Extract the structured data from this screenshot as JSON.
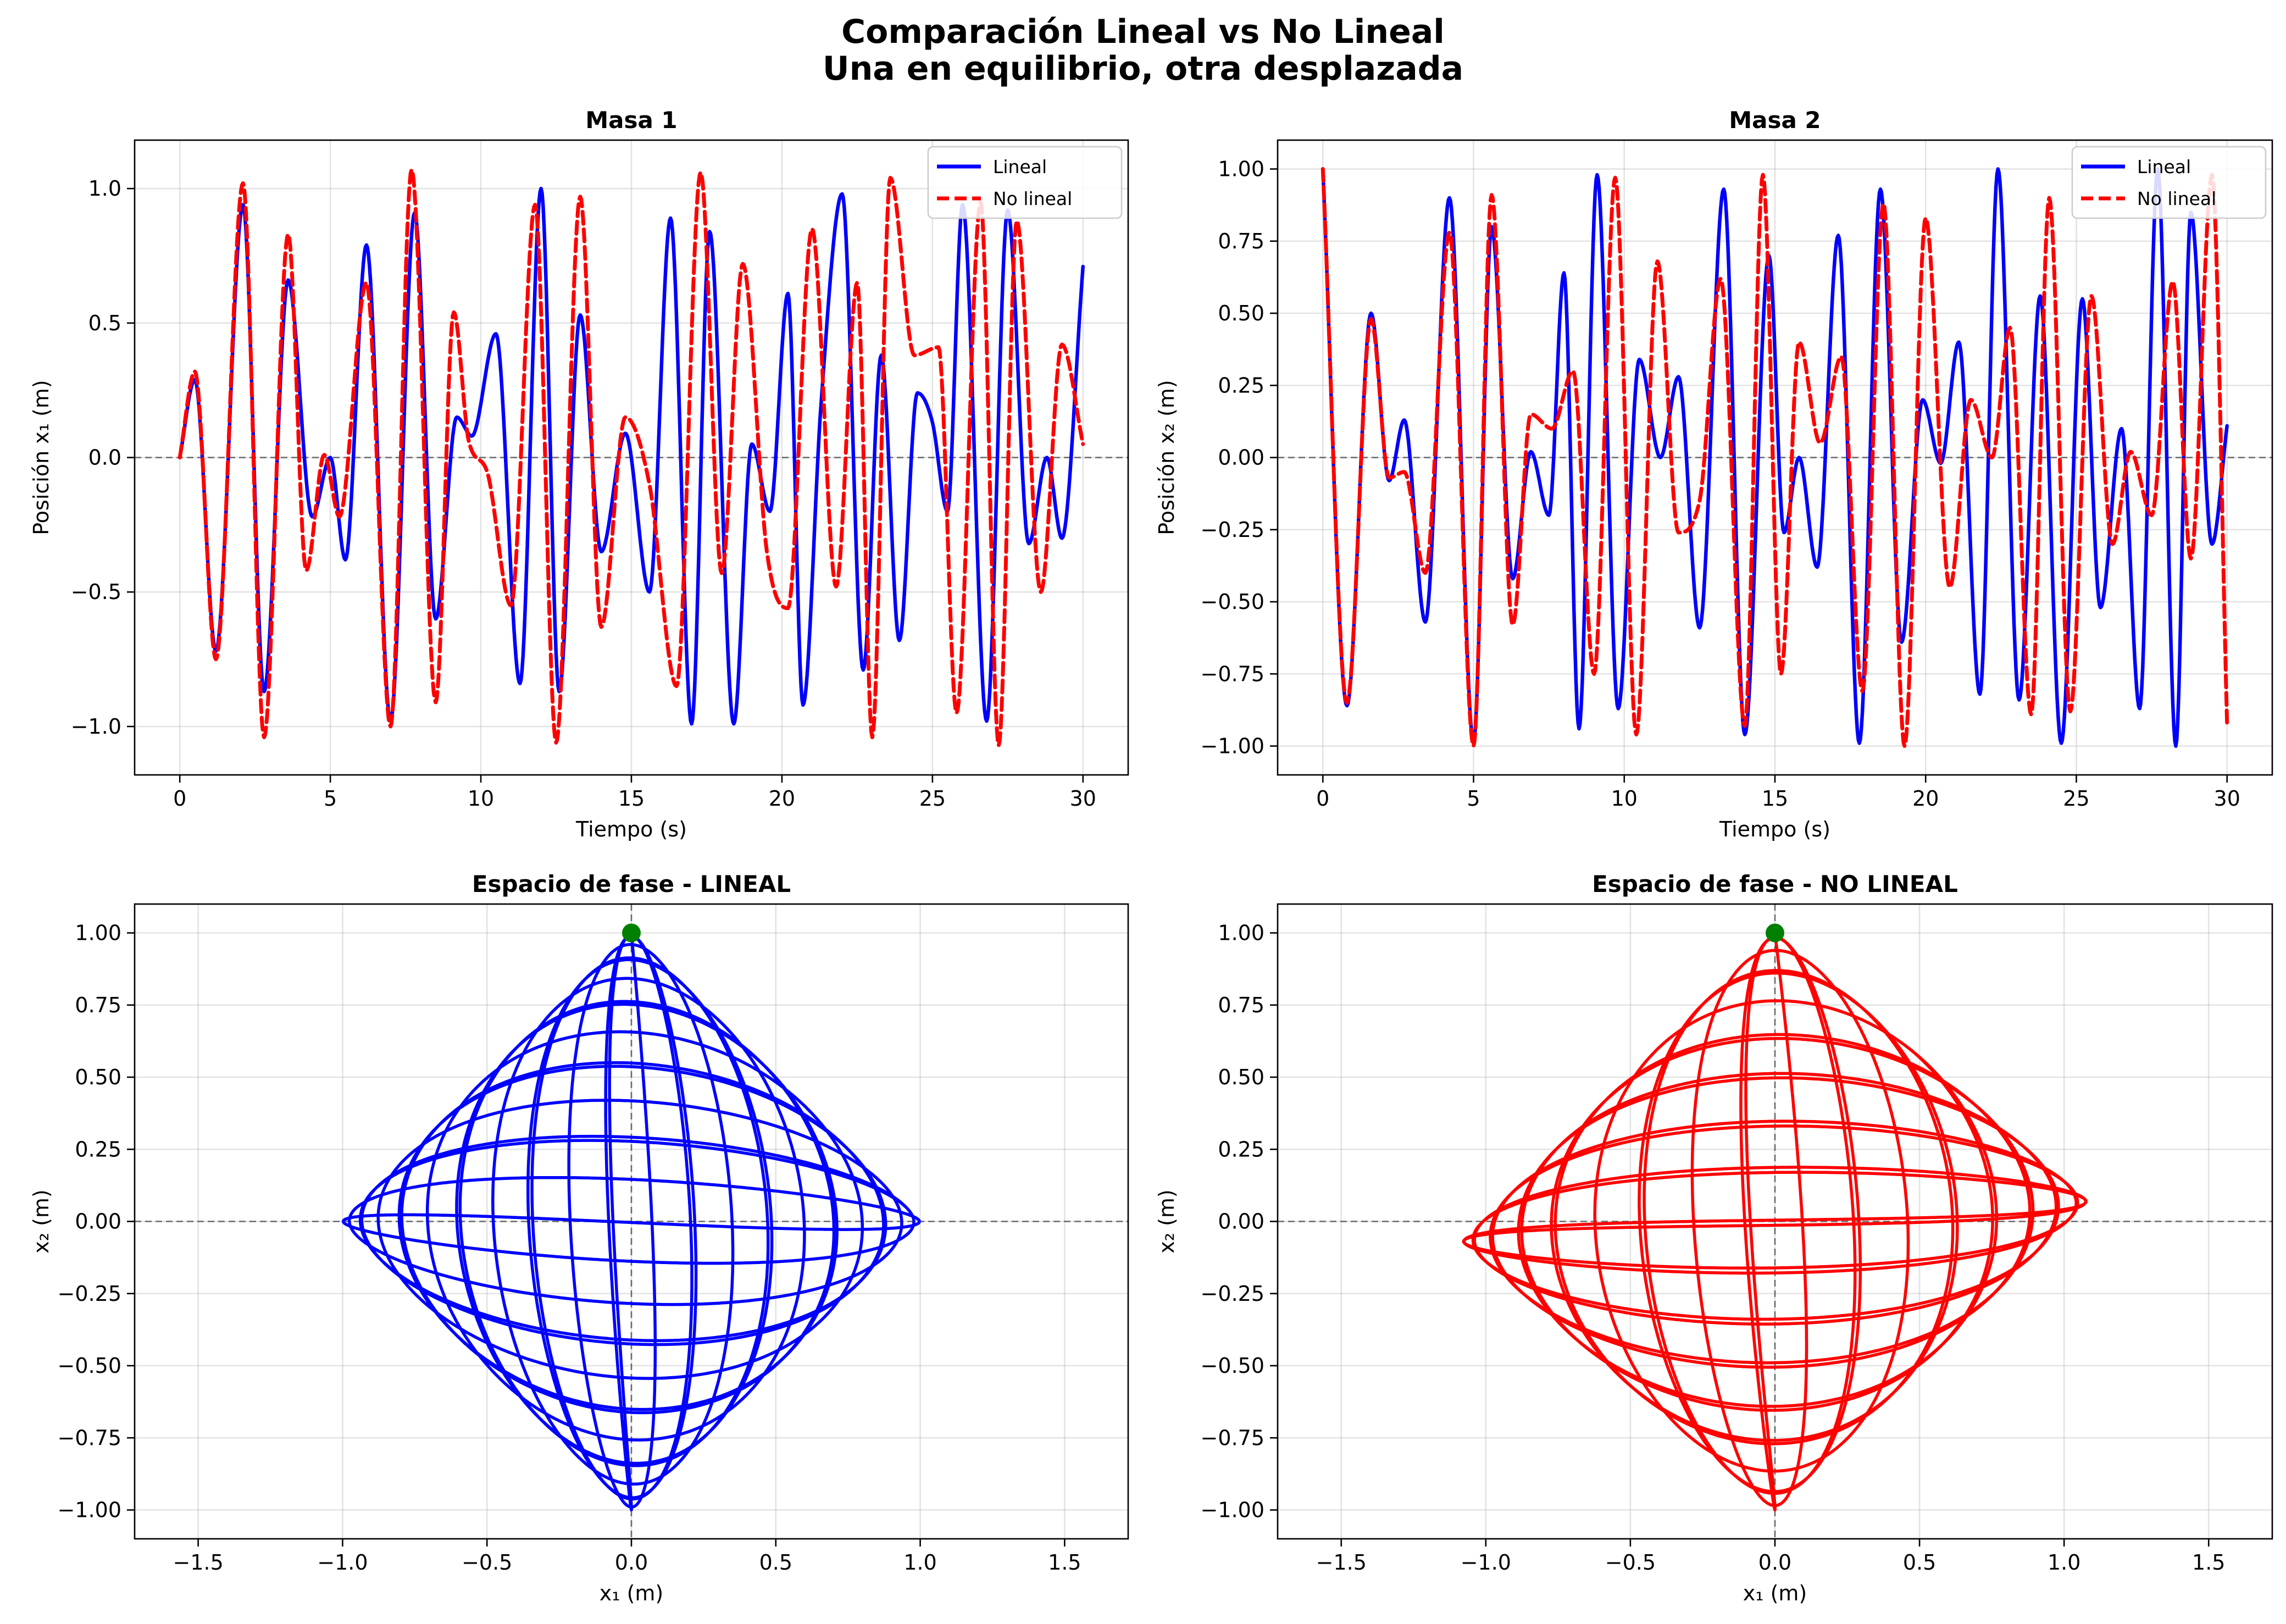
{
  "figure": {
    "title_line1": "Comparación Lineal vs No Lineal",
    "title_line2": "Una en equilibrio, otra desplazada"
  },
  "colors": {
    "lineal": "#0000ff",
    "no_lineal": "#ff0000",
    "start_marker": "#008000",
    "zero_line": "#555555"
  },
  "chart_data": [
    {
      "type": "line",
      "title": "Masa 1",
      "xlabel": "Tiempo (s)",
      "ylabel": "Posición x₁ (m)",
      "xlim": [
        -1.5,
        31.5
      ],
      "ylim": [
        -1.18,
        1.18
      ],
      "xticks": [
        0,
        5,
        10,
        15,
        20,
        25,
        30
      ],
      "xtick_labels": [
        "0",
        "5",
        "10",
        "15",
        "20",
        "25",
        "30"
      ],
      "yticks": [
        -1.0,
        -0.5,
        0.0,
        0.5,
        1.0
      ],
      "ytick_labels": [
        "−1.0",
        "−0.5",
        "0.0",
        "0.5",
        "1.0"
      ],
      "grid": true,
      "legend": "upper right",
      "zero_line": "horizontal dashed at y = 0",
      "series": [
        {
          "name": "Lineal",
          "style": "solid",
          "color": "#0000ff",
          "x": [
            0,
            0.5,
            1.2,
            2.1,
            2.8,
            3.6,
            4.4,
            5.0,
            5.5,
            6.2,
            7.0,
            7.8,
            8.5,
            9.2,
            9.7,
            10.5,
            11.3,
            12.0,
            12.6,
            13.3,
            14.0,
            14.8,
            15.6,
            16.3,
            17.0,
            17.6,
            18.4,
            19.0,
            19.6,
            20.2,
            20.7,
            21.3,
            22.0,
            22.7,
            23.3,
            23.9,
            24.5,
            25.0,
            25.5,
            26.0,
            26.8,
            27.5,
            28.2,
            28.8,
            29.3,
            30.0
          ],
          "y": [
            0,
            0.29,
            -0.72,
            0.94,
            -0.87,
            0.66,
            -0.22,
            0.0,
            -0.38,
            0.79,
            -0.98,
            0.91,
            -0.6,
            0.15,
            0.08,
            0.46,
            -0.84,
            1.0,
            -0.87,
            0.53,
            -0.35,
            0.09,
            -0.5,
            0.89,
            -0.99,
            0.84,
            -0.99,
            0.05,
            -0.2,
            0.61,
            -0.92,
            0.2,
            0.98,
            -0.79,
            0.38,
            -0.68,
            0.24,
            0.13,
            -0.2,
            0.94,
            -0.98,
            0.92,
            -0.32,
            0.0,
            -0.3,
            0.71
          ]
        },
        {
          "name": "No lineal",
          "style": "dashed",
          "color": "#ff0000",
          "x": [
            0,
            0.5,
            1.2,
            2.1,
            2.8,
            3.6,
            4.2,
            4.8,
            5.3,
            6.2,
            7.0,
            7.7,
            8.5,
            9.1,
            9.6,
            10.2,
            11.0,
            11.8,
            12.5,
            13.3,
            14.0,
            14.8,
            15.6,
            16.5,
            17.3,
            18.0,
            18.7,
            19.5,
            20.2,
            21.0,
            21.8,
            22.5,
            23.0,
            23.6,
            24.4,
            25.2,
            25.8,
            26.6,
            27.2,
            27.8,
            28.6,
            29.3,
            30.0
          ],
          "y": [
            0,
            0.32,
            -0.75,
            1.02,
            -1.04,
            0.83,
            -0.42,
            0.01,
            -0.22,
            0.65,
            -1.0,
            1.07,
            -0.91,
            0.54,
            0.06,
            -0.05,
            -0.55,
            0.94,
            -1.06,
            0.97,
            -0.63,
            0.15,
            -0.1,
            -0.85,
            1.06,
            -0.43,
            0.72,
            -0.35,
            -0.56,
            0.85,
            -0.48,
            0.65,
            -1.04,
            1.04,
            0.38,
            0.41,
            -0.95,
            0.95,
            -1.07,
            0.88,
            -0.5,
            0.42,
            0.05
          ]
        }
      ]
    },
    {
      "type": "line",
      "title": "Masa 2",
      "xlabel": "Tiempo (s)",
      "ylabel": "Posición x₂ (m)",
      "xlim": [
        -1.5,
        31.5
      ],
      "ylim": [
        -1.1,
        1.1
      ],
      "xticks": [
        0,
        5,
        10,
        15,
        20,
        25,
        30
      ],
      "xtick_labels": [
        "0",
        "5",
        "10",
        "15",
        "20",
        "25",
        "30"
      ],
      "yticks": [
        -1.0,
        -0.75,
        -0.5,
        -0.25,
        0.0,
        0.25,
        0.5,
        0.75,
        1.0
      ],
      "ytick_labels": [
        "−1.00",
        "−0.75",
        "−0.50",
        "−0.25",
        "0.00",
        "0.25",
        "0.50",
        "0.75",
        "1.00"
      ],
      "grid": true,
      "legend": "upper right",
      "zero_line": "horizontal dashed at y = 0",
      "series": [
        {
          "name": "Lineal",
          "style": "solid",
          "color": "#0000ff",
          "x": [
            0,
            0.8,
            1.6,
            2.2,
            2.7,
            3.4,
            4.2,
            5.0,
            5.6,
            6.3,
            6.9,
            7.5,
            8.0,
            8.5,
            9.1,
            9.8,
            10.5,
            11.2,
            11.8,
            12.5,
            13.3,
            14.0,
            14.8,
            15.3,
            15.8,
            16.4,
            17.1,
            17.8,
            18.5,
            19.2,
            19.9,
            20.5,
            21.1,
            21.8,
            22.4,
            23.1,
            23.8,
            24.5,
            25.2,
            25.8,
            26.5,
            27.1,
            27.7,
            28.3,
            28.8,
            29.5,
            30.0
          ],
          "y": [
            1.0,
            -0.86,
            0.5,
            -0.08,
            0.13,
            -0.57,
            0.9,
            -0.99,
            0.8,
            -0.42,
            0.02,
            -0.2,
            0.64,
            -0.94,
            0.98,
            -0.87,
            0.34,
            0.0,
            0.28,
            -0.59,
            0.93,
            -0.96,
            0.7,
            -0.26,
            0.0,
            -0.38,
            0.77,
            -0.99,
            0.93,
            -0.64,
            0.2,
            -0.02,
            0.4,
            -0.82,
            1.0,
            -0.84,
            0.56,
            -0.99,
            0.55,
            -0.52,
            0.1,
            -0.87,
            1.0,
            -1.0,
            0.85,
            -0.3,
            0.11
          ]
        },
        {
          "name": "No lineal",
          "style": "dashed",
          "color": "#ff0000",
          "x": [
            0,
            0.8,
            1.6,
            2.2,
            2.7,
            3.4,
            4.2,
            5.0,
            5.6,
            6.3,
            6.9,
            7.6,
            8.3,
            9.0,
            9.7,
            10.4,
            11.1,
            11.8,
            12.5,
            13.2,
            14.0,
            14.6,
            15.2,
            15.8,
            16.5,
            17.2,
            17.9,
            18.6,
            19.3,
            20.0,
            20.8,
            21.5,
            22.2,
            22.8,
            23.5,
            24.1,
            24.8,
            25.5,
            26.2,
            26.8,
            27.5,
            28.2,
            28.8,
            29.5,
            30.0
          ],
          "y": [
            1.0,
            -0.85,
            0.48,
            -0.07,
            -0.05,
            -0.4,
            0.78,
            -1.0,
            0.91,
            -0.58,
            0.15,
            0.1,
            0.3,
            -0.75,
            0.97,
            -0.96,
            0.68,
            -0.26,
            -0.15,
            0.62,
            -0.93,
            0.98,
            -0.75,
            0.4,
            0.05,
            0.35,
            -0.81,
            0.88,
            -1.0,
            0.83,
            -0.45,
            0.2,
            0.0,
            0.45,
            -0.89,
            0.9,
            -0.88,
            0.56,
            -0.3,
            0.02,
            -0.2,
            0.61,
            -0.35,
            0.98,
            -0.92
          ]
        }
      ]
    },
    {
      "type": "scatter",
      "title": "Espacio de fase - LINEAL",
      "xlabel": "x₁ (m)",
      "ylabel": "x₂ (m)",
      "xlim": [
        -1.72,
        1.72
      ],
      "ylim": [
        -1.1,
        1.1
      ],
      "xticks": [
        -1.5,
        -1.0,
        -0.5,
        0.0,
        0.5,
        1.0,
        1.5
      ],
      "xtick_labels": [
        "−1.5",
        "−1.0",
        "−0.5",
        "0.0",
        "0.5",
        "1.0",
        "1.5"
      ],
      "yticks": [
        -1.0,
        -0.75,
        -0.5,
        -0.25,
        0.0,
        0.25,
        0.5,
        0.75,
        1.0
      ],
      "ytick_labels": [
        "−1.00",
        "−0.75",
        "−0.50",
        "−0.25",
        "0.00",
        "0.25",
        "0.50",
        "0.75",
        "1.00"
      ],
      "grid": true,
      "zero_line": "horizontal and vertical dashed at 0",
      "trajectory_color": "#0000ff",
      "trajectory_extent": {
        "x1": [
          -1.0,
          1.0
        ],
        "x2": [
          -1.0,
          1.0
        ]
      },
      "vertices": [
        [
          0.0,
          1.0
        ],
        [
          1.0,
          0.0
        ],
        [
          0.0,
          -1.0
        ],
        [
          -1.0,
          0.0
        ]
      ],
      "start_point": {
        "x": 0.0,
        "y": 1.0,
        "color": "#008000"
      }
    },
    {
      "type": "scatter",
      "title": "Espacio de fase - NO LINEAL",
      "xlabel": "x₁ (m)",
      "ylabel": "x₂ (m)",
      "xlim": [
        -1.72,
        1.72
      ],
      "ylim": [
        -1.1,
        1.1
      ],
      "xticks": [
        -1.5,
        -1.0,
        -0.5,
        0.0,
        0.5,
        1.0,
        1.5
      ],
      "xtick_labels": [
        "−1.5",
        "−1.0",
        "−0.5",
        "0.0",
        "0.5",
        "1.0",
        "1.5"
      ],
      "yticks": [
        -1.0,
        -0.75,
        -0.5,
        -0.25,
        0.0,
        0.25,
        0.5,
        0.75,
        1.0
      ],
      "ytick_labels": [
        "−1.00",
        "−0.75",
        "−0.50",
        "−0.25",
        "0.00",
        "0.25",
        "0.50",
        "0.75",
        "1.00"
      ],
      "grid": true,
      "zero_line": "horizontal and vertical dashed at 0",
      "trajectory_color": "#ff0000",
      "trajectory_extent": {
        "x1": [
          -1.08,
          1.08
        ],
        "x2": [
          -1.0,
          1.0
        ]
      },
      "vertices": [
        [
          0.0,
          1.0
        ],
        [
          1.08,
          0.07
        ],
        [
          0.0,
          -1.0
        ],
        [
          -1.08,
          -0.07
        ]
      ],
      "start_point": {
        "x": 0.0,
        "y": 1.0,
        "color": "#008000"
      }
    }
  ]
}
